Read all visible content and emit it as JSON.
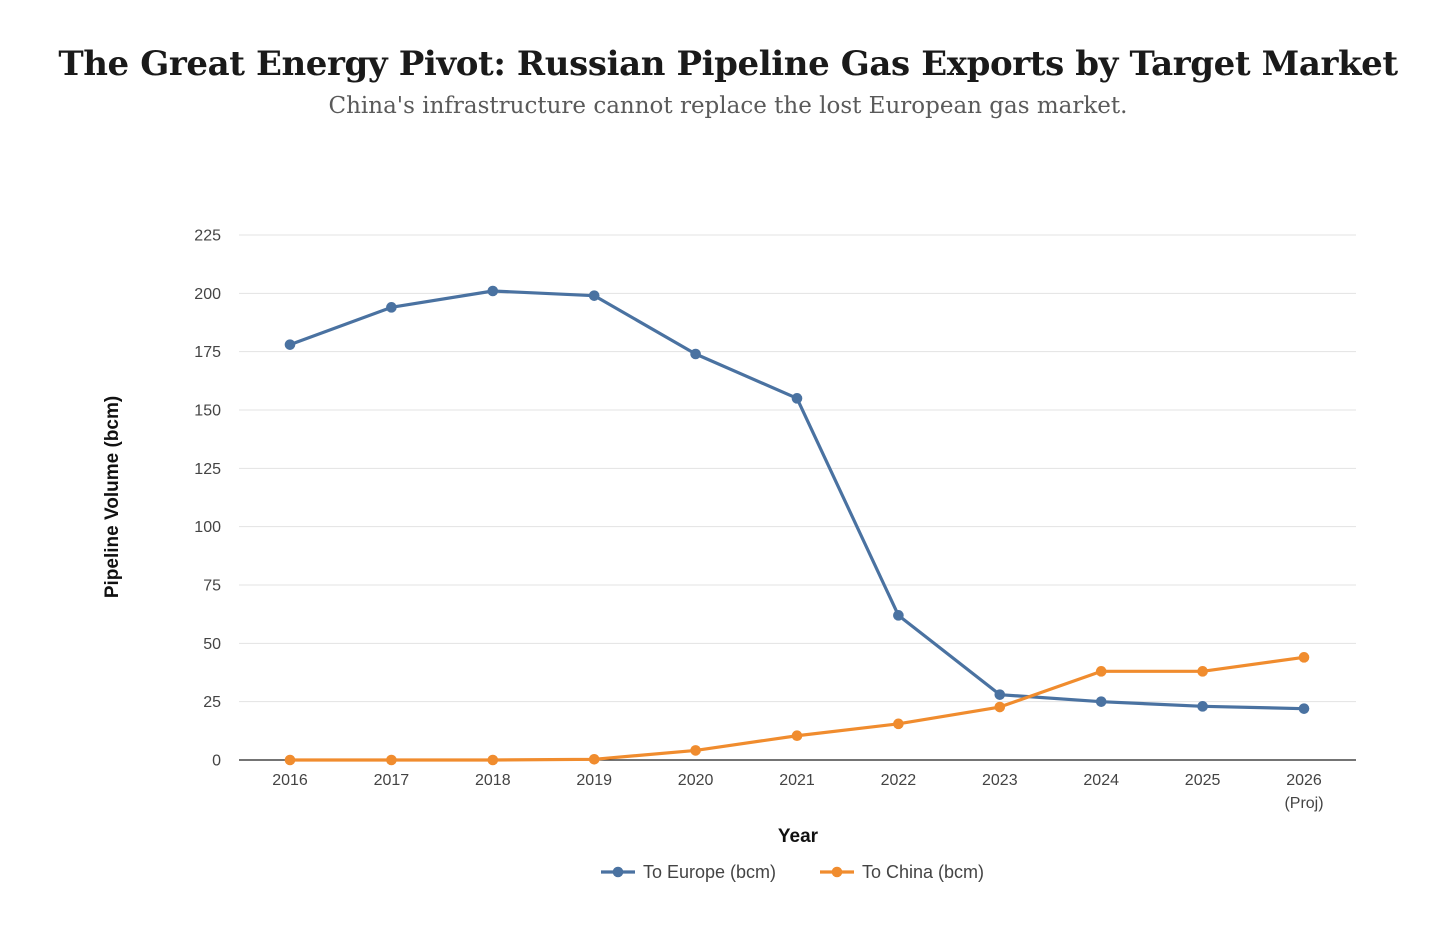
{
  "title": "The Great Energy Pivot: Russian Pipeline Gas Exports by Target Market",
  "subtitle": "China's infrastructure cannot replace the lost European gas market.",
  "chart_data": {
    "type": "line",
    "title": "The Great Energy Pivot: Russian Pipeline Gas Exports by Target Market",
    "subtitle": "China's infrastructure cannot replace the lost European gas market.",
    "xlabel": "Year",
    "ylabel": "Pipeline Volume (bcm)",
    "categories": [
      [
        "2016"
      ],
      [
        "2017"
      ],
      [
        "2018"
      ],
      [
        "2019"
      ],
      [
        "2020"
      ],
      [
        "2021"
      ],
      [
        "2022"
      ],
      [
        "2023"
      ],
      [
        "2024"
      ],
      [
        "2025"
      ],
      [
        "2026",
        "(Proj)"
      ]
    ],
    "ylim": [
      0,
      225
    ],
    "yticks": [
      0,
      25,
      50,
      75,
      100,
      125,
      150,
      175,
      200,
      225
    ],
    "grid": true,
    "legend_position": "bottom-center",
    "series": [
      {
        "name": "To Europe (bcm)",
        "color": "#4a72a1",
        "values": [
          178,
          194,
          201,
          199,
          174,
          155,
          62,
          28,
          25,
          23,
          22
        ]
      },
      {
        "name": "To China (bcm)",
        "color": "#f08c2e",
        "values": [
          0,
          0,
          0,
          0.3,
          4.1,
          10.4,
          15.5,
          22.7,
          38,
          38,
          44
        ]
      }
    ]
  }
}
